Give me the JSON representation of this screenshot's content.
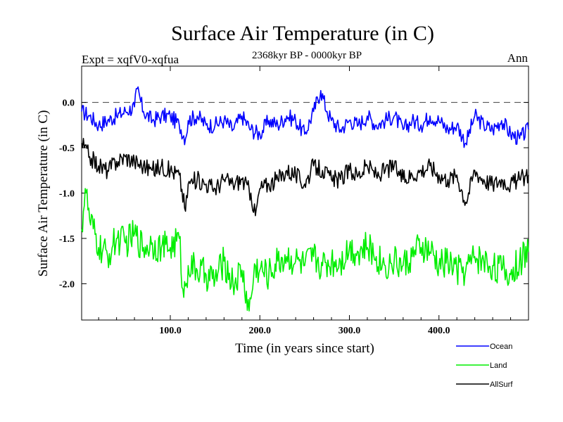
{
  "chart_data": {
    "type": "line",
    "title": "Surface Air Temperature (in C)",
    "subtitle": "2368kyr BP - 0000kyr BP",
    "expt_label": "Expt = xqfV0-xqfua",
    "season_label": "Ann",
    "xlabel": "Time (in years since start)",
    "ylabel": "Surface Air Temperature (in C)",
    "xlim": [
      1,
      500
    ],
    "ylim": [
      -2.4,
      0.4
    ],
    "x_ticks": [
      {
        "value": 100,
        "label": "100.0"
      },
      {
        "value": 200,
        "label": "200.0"
      },
      {
        "value": 300,
        "label": "300.0"
      },
      {
        "value": 400,
        "label": "400.0"
      }
    ],
    "y_ticks": [
      {
        "value": 0.0,
        "label": "0.0"
      },
      {
        "value": -0.5,
        "label": "-0.5"
      },
      {
        "value": -1.0,
        "label": "-1.0"
      },
      {
        "value": -1.5,
        "label": "-1.5"
      },
      {
        "value": -2.0,
        "label": "-2.0"
      }
    ],
    "reference_line": 0.0,
    "legend_position": "bottom-right",
    "series": [
      {
        "name": "Ocean",
        "color": "#0000ff",
        "x": [
          1,
          10,
          20,
          30,
          40,
          50,
          60,
          63,
          70,
          80,
          90,
          100,
          110,
          117,
          120,
          130,
          140,
          150,
          160,
          170,
          180,
          190,
          200,
          210,
          220,
          230,
          240,
          250,
          260,
          268,
          275,
          280,
          290,
          300,
          310,
          320,
          330,
          340,
          350,
          360,
          370,
          380,
          390,
          400,
          410,
          420,
          430,
          440,
          450,
          460,
          470,
          480,
          490,
          500
        ],
        "values": [
          -0.1,
          -0.15,
          -0.25,
          -0.2,
          -0.15,
          -0.1,
          -0.05,
          0.15,
          -0.1,
          -0.2,
          -0.15,
          -0.15,
          -0.25,
          -0.4,
          -0.2,
          -0.15,
          -0.25,
          -0.25,
          -0.2,
          -0.3,
          -0.15,
          -0.3,
          -0.35,
          -0.2,
          -0.25,
          -0.15,
          -0.2,
          -0.35,
          -0.1,
          0.13,
          -0.1,
          -0.2,
          -0.3,
          -0.2,
          -0.25,
          -0.15,
          -0.25,
          -0.2,
          -0.15,
          -0.3,
          -0.2,
          -0.25,
          -0.15,
          -0.2,
          -0.3,
          -0.25,
          -0.45,
          -0.15,
          -0.25,
          -0.3,
          -0.2,
          -0.35,
          -0.4,
          -0.3
        ]
      },
      {
        "name": "Land",
        "color": "#00ee00",
        "x": [
          1,
          5,
          10,
          20,
          30,
          40,
          50,
          60,
          70,
          80,
          90,
          100,
          110,
          115,
          120,
          130,
          140,
          150,
          160,
          170,
          180,
          188,
          195,
          200,
          210,
          220,
          230,
          240,
          250,
          260,
          270,
          280,
          290,
          300,
          310,
          320,
          330,
          340,
          350,
          360,
          370,
          380,
          390,
          400,
          410,
          420,
          430,
          440,
          450,
          460,
          470,
          480,
          490,
          500
        ],
        "values": [
          -1.4,
          -0.95,
          -1.3,
          -1.6,
          -1.7,
          -1.5,
          -1.55,
          -1.45,
          -1.6,
          -1.55,
          -1.6,
          -1.6,
          -1.5,
          -2.15,
          -1.8,
          -1.85,
          -1.9,
          -1.95,
          -1.75,
          -2.0,
          -1.85,
          -2.3,
          -1.8,
          -1.85,
          -1.9,
          -1.75,
          -1.7,
          -1.75,
          -1.8,
          -1.7,
          -1.8,
          -1.75,
          -1.75,
          -1.6,
          -1.65,
          -1.6,
          -1.7,
          -1.8,
          -1.75,
          -1.8,
          -1.7,
          -1.6,
          -1.65,
          -1.8,
          -1.75,
          -1.85,
          -1.85,
          -1.7,
          -1.75,
          -1.8,
          -1.85,
          -1.9,
          -1.75,
          -1.65
        ]
      },
      {
        "name": "AllSurf",
        "color": "#000000",
        "x": [
          1,
          10,
          20,
          30,
          40,
          50,
          60,
          70,
          80,
          90,
          100,
          110,
          117,
          120,
          130,
          140,
          150,
          160,
          170,
          180,
          190,
          195,
          200,
          210,
          220,
          230,
          240,
          250,
          260,
          270,
          280,
          290,
          300,
          310,
          320,
          330,
          340,
          350,
          360,
          370,
          380,
          390,
          400,
          410,
          420,
          430,
          440,
          450,
          460,
          470,
          480,
          490,
          500
        ],
        "values": [
          -0.45,
          -0.6,
          -0.7,
          -0.75,
          -0.65,
          -0.6,
          -0.65,
          -0.7,
          -0.75,
          -0.7,
          -0.75,
          -0.8,
          -1.2,
          -0.9,
          -0.85,
          -0.9,
          -0.95,
          -0.85,
          -0.9,
          -0.85,
          -1.0,
          -1.25,
          -0.95,
          -0.9,
          -0.85,
          -0.75,
          -0.8,
          -0.9,
          -0.7,
          -0.75,
          -0.85,
          -0.85,
          -0.75,
          -0.8,
          -0.7,
          -0.8,
          -0.75,
          -0.7,
          -0.85,
          -0.8,
          -0.75,
          -0.7,
          -0.8,
          -0.85,
          -0.8,
          -1.1,
          -0.75,
          -0.85,
          -0.9,
          -0.85,
          -0.9,
          -0.85,
          -0.8
        ]
      }
    ]
  }
}
